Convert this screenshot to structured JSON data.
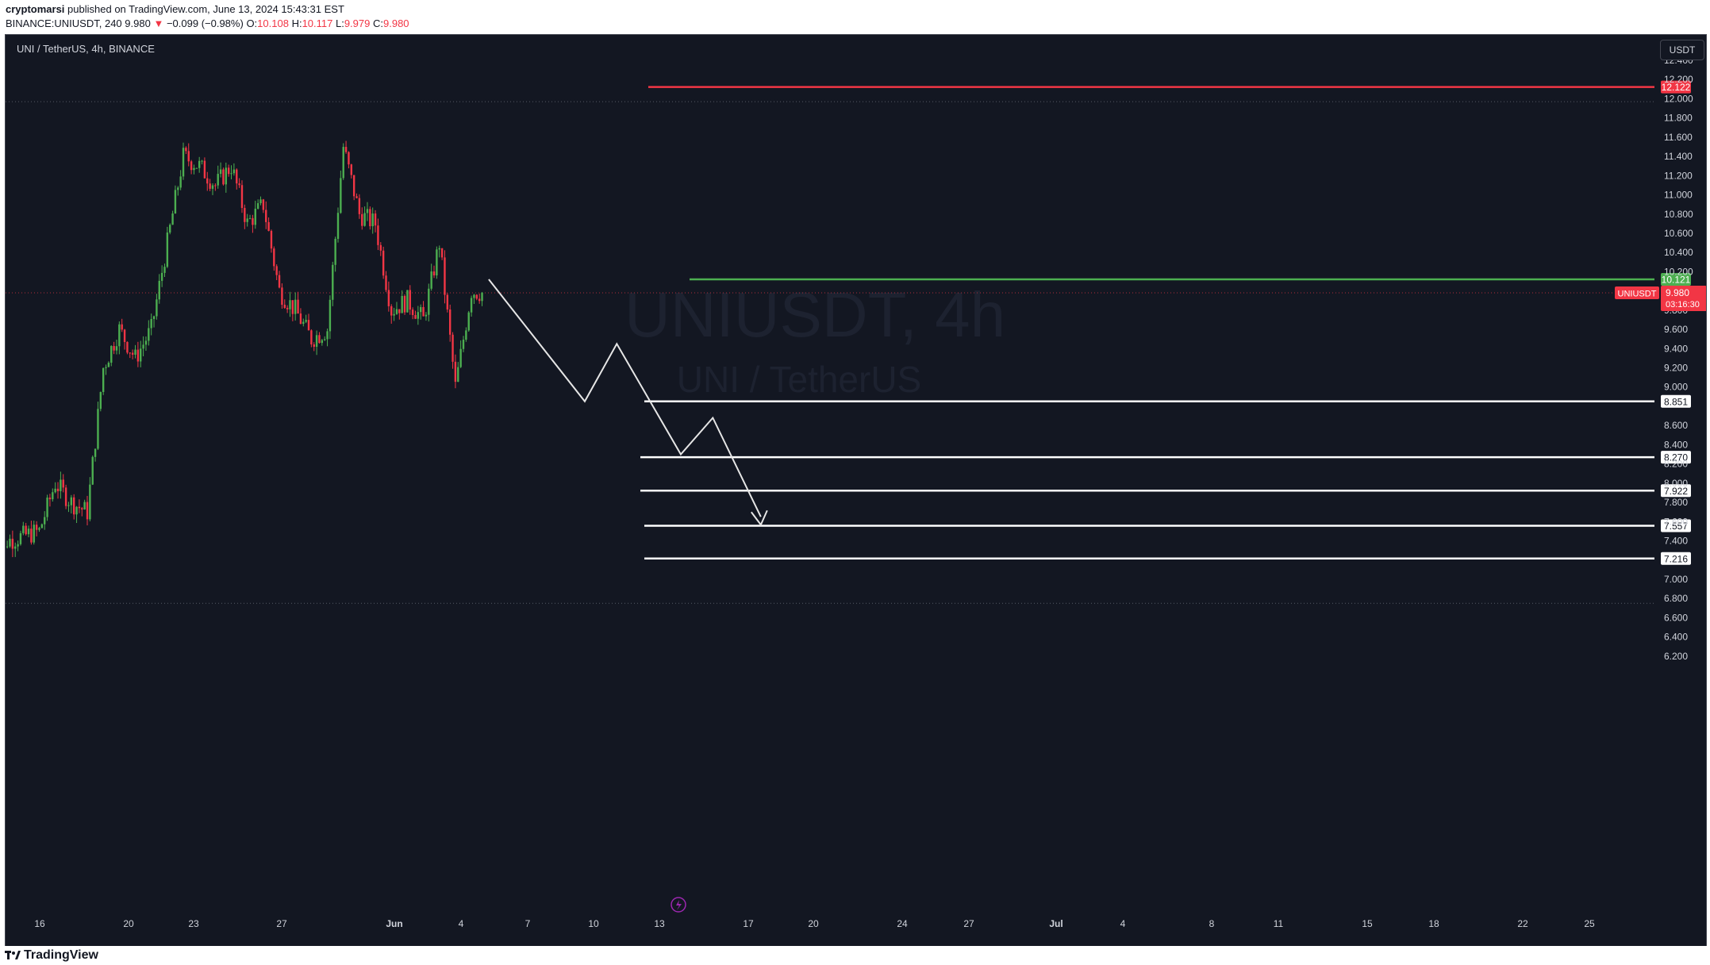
{
  "header": {
    "author": "cryptomarsi",
    "published_text": "published on TradingView.com, June 13, 2024 15:43:31 EST",
    "symbol": "BINANCE:UNIUSDT, 240",
    "last": "9.980",
    "change": "−0.099 (−0.98%)",
    "open_label": "O:",
    "open": "10.108",
    "high_label": "H:",
    "high": "10.117",
    "low_label": "L:",
    "low": "9.979",
    "close_label": "C:",
    "close": "9.980"
  },
  "chart_title": "UNI / TetherUS, 4h, BINANCE",
  "currency_button": "USDT",
  "watermark": {
    "line1": "UNIUSDT, 4h",
    "line2": "UNI / TetherUS"
  },
  "footer": {
    "brand": "TradingView"
  },
  "colors": {
    "background": "#131722",
    "up": "#4caf50",
    "down": "#f23645",
    "resistance": "#f23645",
    "support_green": "#4caf50",
    "target_line": "#ffffff",
    "price_label": "#f23645"
  },
  "chart_data": {
    "type": "candlestick",
    "title": "UNI / TetherUS, 4h, BINANCE",
    "ylim": [
      6.1,
      12.6
    ],
    "y_ticks": [
      "6.200",
      "6.400",
      "6.600",
      "6.800",
      "7.000",
      "7.400",
      "7.600",
      "7.800",
      "8.000",
      "8.200",
      "8.400",
      "8.600",
      "9.000",
      "9.200",
      "9.400",
      "9.600",
      "9.800",
      "10.200",
      "10.400",
      "10.600",
      "10.800",
      "11.000",
      "11.200",
      "11.400",
      "11.600",
      "11.800",
      "12.000",
      "12.200",
      "12.400"
    ],
    "x_ticks": [
      "16",
      "20",
      "23",
      "27",
      "Jun",
      "4",
      "7",
      "10",
      "13",
      "17",
      "20",
      "24",
      "27",
      "Jul",
      "4",
      "8",
      "11",
      "15",
      "18",
      "22",
      "25"
    ],
    "price_path": [
      [
        "2024-05-14",
        6.8
      ],
      [
        "2024-05-15",
        7.4
      ],
      [
        "2024-05-17",
        7.5
      ],
      [
        "2024-05-18",
        8.0
      ],
      [
        "2024-05-19",
        7.8
      ],
      [
        "2024-05-20",
        7.7
      ],
      [
        "2024-05-21",
        9.2
      ],
      [
        "2024-05-22",
        9.6
      ],
      [
        "2024-05-23",
        9.3
      ],
      [
        "2024-05-24",
        9.6
      ],
      [
        "2024-05-25",
        10.5
      ],
      [
        "2024-05-26",
        11.4
      ],
      [
        "2024-05-27",
        11.3
      ],
      [
        "2024-05-28",
        11.1
      ],
      [
        "2024-05-29",
        11.3
      ],
      [
        "2024-05-30",
        10.7
      ],
      [
        "2024-05-31",
        10.9
      ],
      [
        "2024-06-01",
        10.0
      ],
      [
        "2024-06-02",
        9.8
      ],
      [
        "2024-06-03",
        9.5
      ],
      [
        "2024-06-04",
        9.6
      ],
      [
        "2024-06-05",
        11.5
      ],
      [
        "2024-06-06",
        10.8
      ],
      [
        "2024-06-07",
        10.7
      ],
      [
        "2024-06-08",
        9.8
      ],
      [
        "2024-06-09",
        9.9
      ],
      [
        "2024-06-10",
        9.7
      ],
      [
        "2024-06-11",
        10.5
      ],
      [
        "2024-06-12",
        9.0
      ],
      [
        "2024-06-13",
        10.0
      ],
      [
        "2024-06-13T16:00",
        9.98
      ]
    ],
    "horizontal_levels": [
      {
        "value": 12.122,
        "label": "12.122",
        "color": "#f23645"
      },
      {
        "value": 10.121,
        "label": "10.121",
        "color": "#4caf50"
      },
      {
        "value": 8.851,
        "label": "8.851",
        "color": "#ffffff"
      },
      {
        "value": 8.27,
        "label": "8.270",
        "color": "#ffffff"
      },
      {
        "value": 7.922,
        "label": "7.922",
        "color": "#ffffff"
      },
      {
        "value": 7.557,
        "label": "7.557",
        "color": "#ffffff"
      },
      {
        "value": 7.216,
        "label": "7.216",
        "color": "#ffffff"
      }
    ],
    "current_price": {
      "symbol": "UNIUSDT",
      "value": "9.980",
      "countdown": "03:16:30"
    },
    "projection_path": [
      [
        "2024-06-14",
        10.121
      ],
      [
        "2024-06-20",
        8.851
      ],
      [
        "2024-06-22",
        9.45
      ],
      [
        "2024-06-26",
        8.3
      ],
      [
        "2024-06-28",
        8.68
      ],
      [
        "2024-07-01",
        7.65
      ]
    ]
  }
}
